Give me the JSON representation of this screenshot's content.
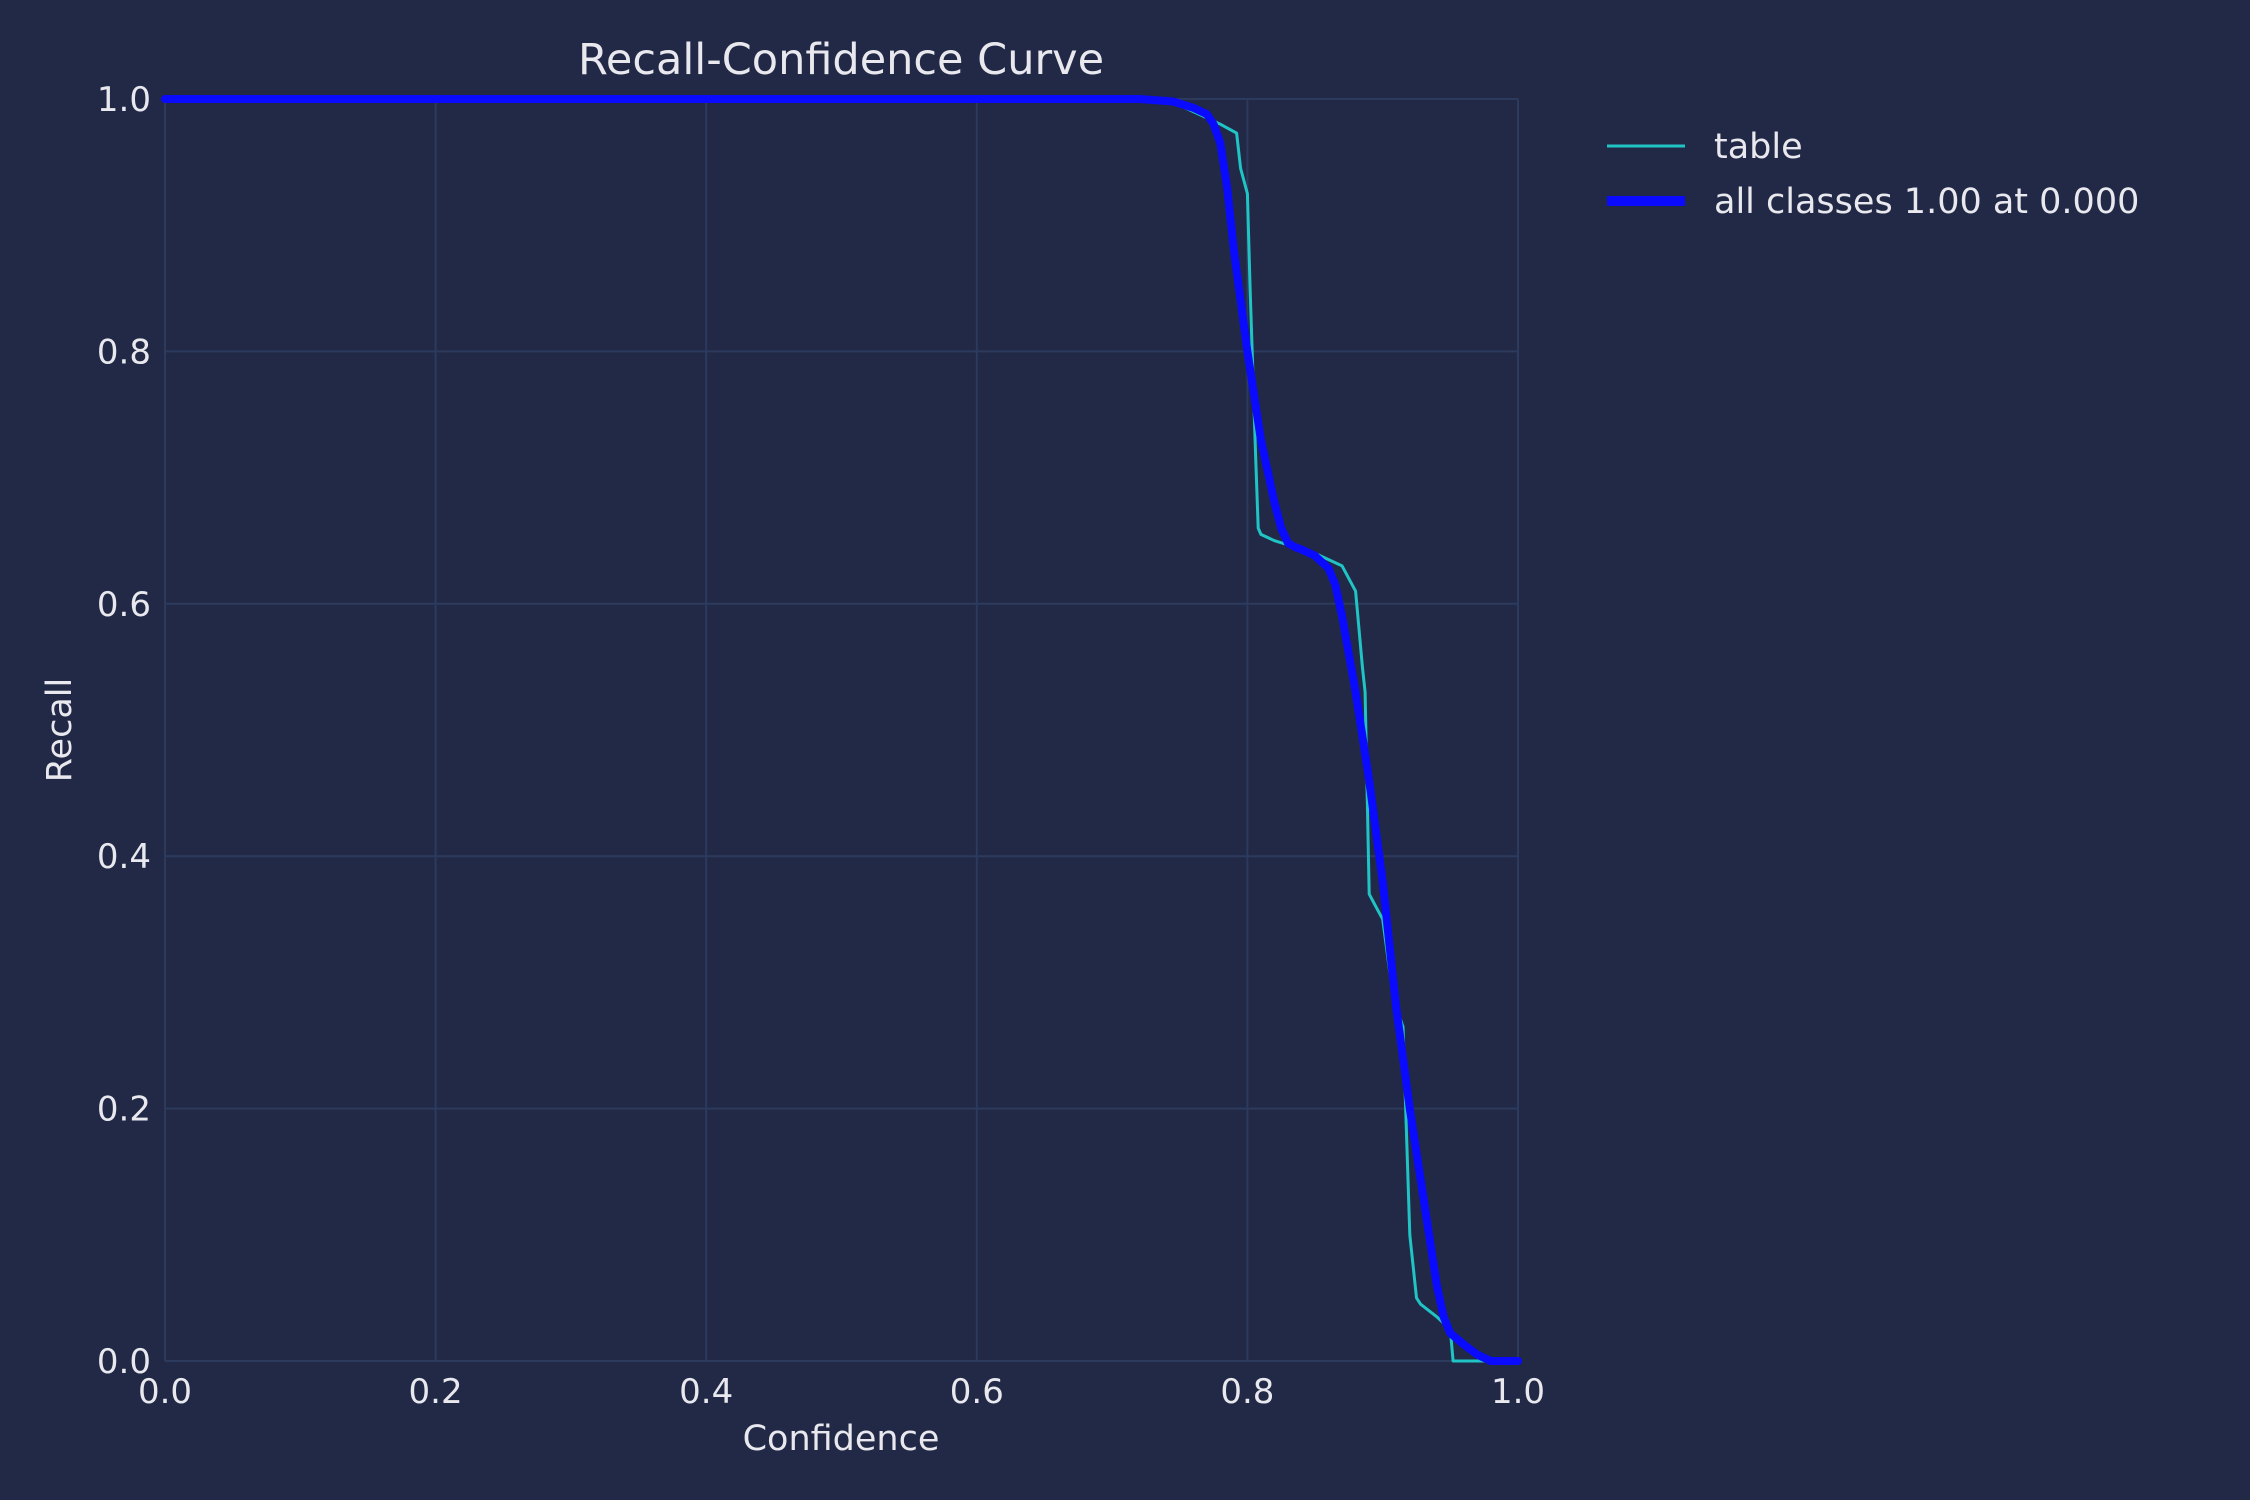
{
  "chart_data": {
    "type": "line",
    "title": "Recall-Confidence Curve",
    "xlabel": "Confidence",
    "ylabel": "Recall",
    "xlim": [
      0,
      1
    ],
    "ylim": [
      0,
      1
    ],
    "xticks": [
      "0.0",
      "0.2",
      "0.4",
      "0.6",
      "0.8",
      "1.0"
    ],
    "yticks": [
      "0.0",
      "0.2",
      "0.4",
      "0.6",
      "0.8",
      "1.0"
    ],
    "grid": true,
    "legend_position": "outside-right-top",
    "series": [
      {
        "name": "table",
        "color": "#20c4c4",
        "line_width": "thin",
        "x": [
          0.0,
          0.7,
          0.74,
          0.76,
          0.78,
          0.792,
          0.795,
          0.8,
          0.802,
          0.806,
          0.808,
          0.81,
          0.82,
          0.835,
          0.85,
          0.87,
          0.88,
          0.885,
          0.887,
          0.89,
          0.895,
          0.9,
          0.905,
          0.91,
          0.915,
          0.92,
          0.925,
          0.928,
          0.94,
          0.95,
          0.952,
          0.97,
          1.0
        ],
        "y": [
          1.0,
          1.0,
          1.0,
          0.99,
          0.98,
          0.973,
          0.945,
          0.925,
          0.85,
          0.72,
          0.66,
          0.655,
          0.65,
          0.645,
          0.64,
          0.63,
          0.61,
          0.55,
          0.53,
          0.37,
          0.36,
          0.35,
          0.31,
          0.28,
          0.265,
          0.1,
          0.05,
          0.045,
          0.035,
          0.025,
          0.0,
          0.0,
          0.0
        ]
      },
      {
        "name": "all classes 1.00 at 0.000",
        "color": "#0a0aff",
        "line_width": "thick",
        "x": [
          0.0,
          0.72,
          0.745,
          0.76,
          0.77,
          0.775,
          0.78,
          0.785,
          0.79,
          0.8,
          0.81,
          0.82,
          0.825,
          0.83,
          0.835,
          0.84,
          0.85,
          0.86,
          0.865,
          0.87,
          0.875,
          0.88,
          0.89,
          0.9,
          0.91,
          0.92,
          0.93,
          0.94,
          0.945,
          0.95,
          0.96,
          0.97,
          0.98,
          1.0
        ],
        "y": [
          1.0,
          1.0,
          0.998,
          0.993,
          0.988,
          0.98,
          0.965,
          0.93,
          0.88,
          0.8,
          0.73,
          0.68,
          0.66,
          0.648,
          0.645,
          0.643,
          0.638,
          0.628,
          0.615,
          0.59,
          0.56,
          0.53,
          0.46,
          0.38,
          0.28,
          0.2,
          0.13,
          0.06,
          0.035,
          0.022,
          0.013,
          0.005,
          0.0,
          0.0
        ]
      }
    ]
  }
}
